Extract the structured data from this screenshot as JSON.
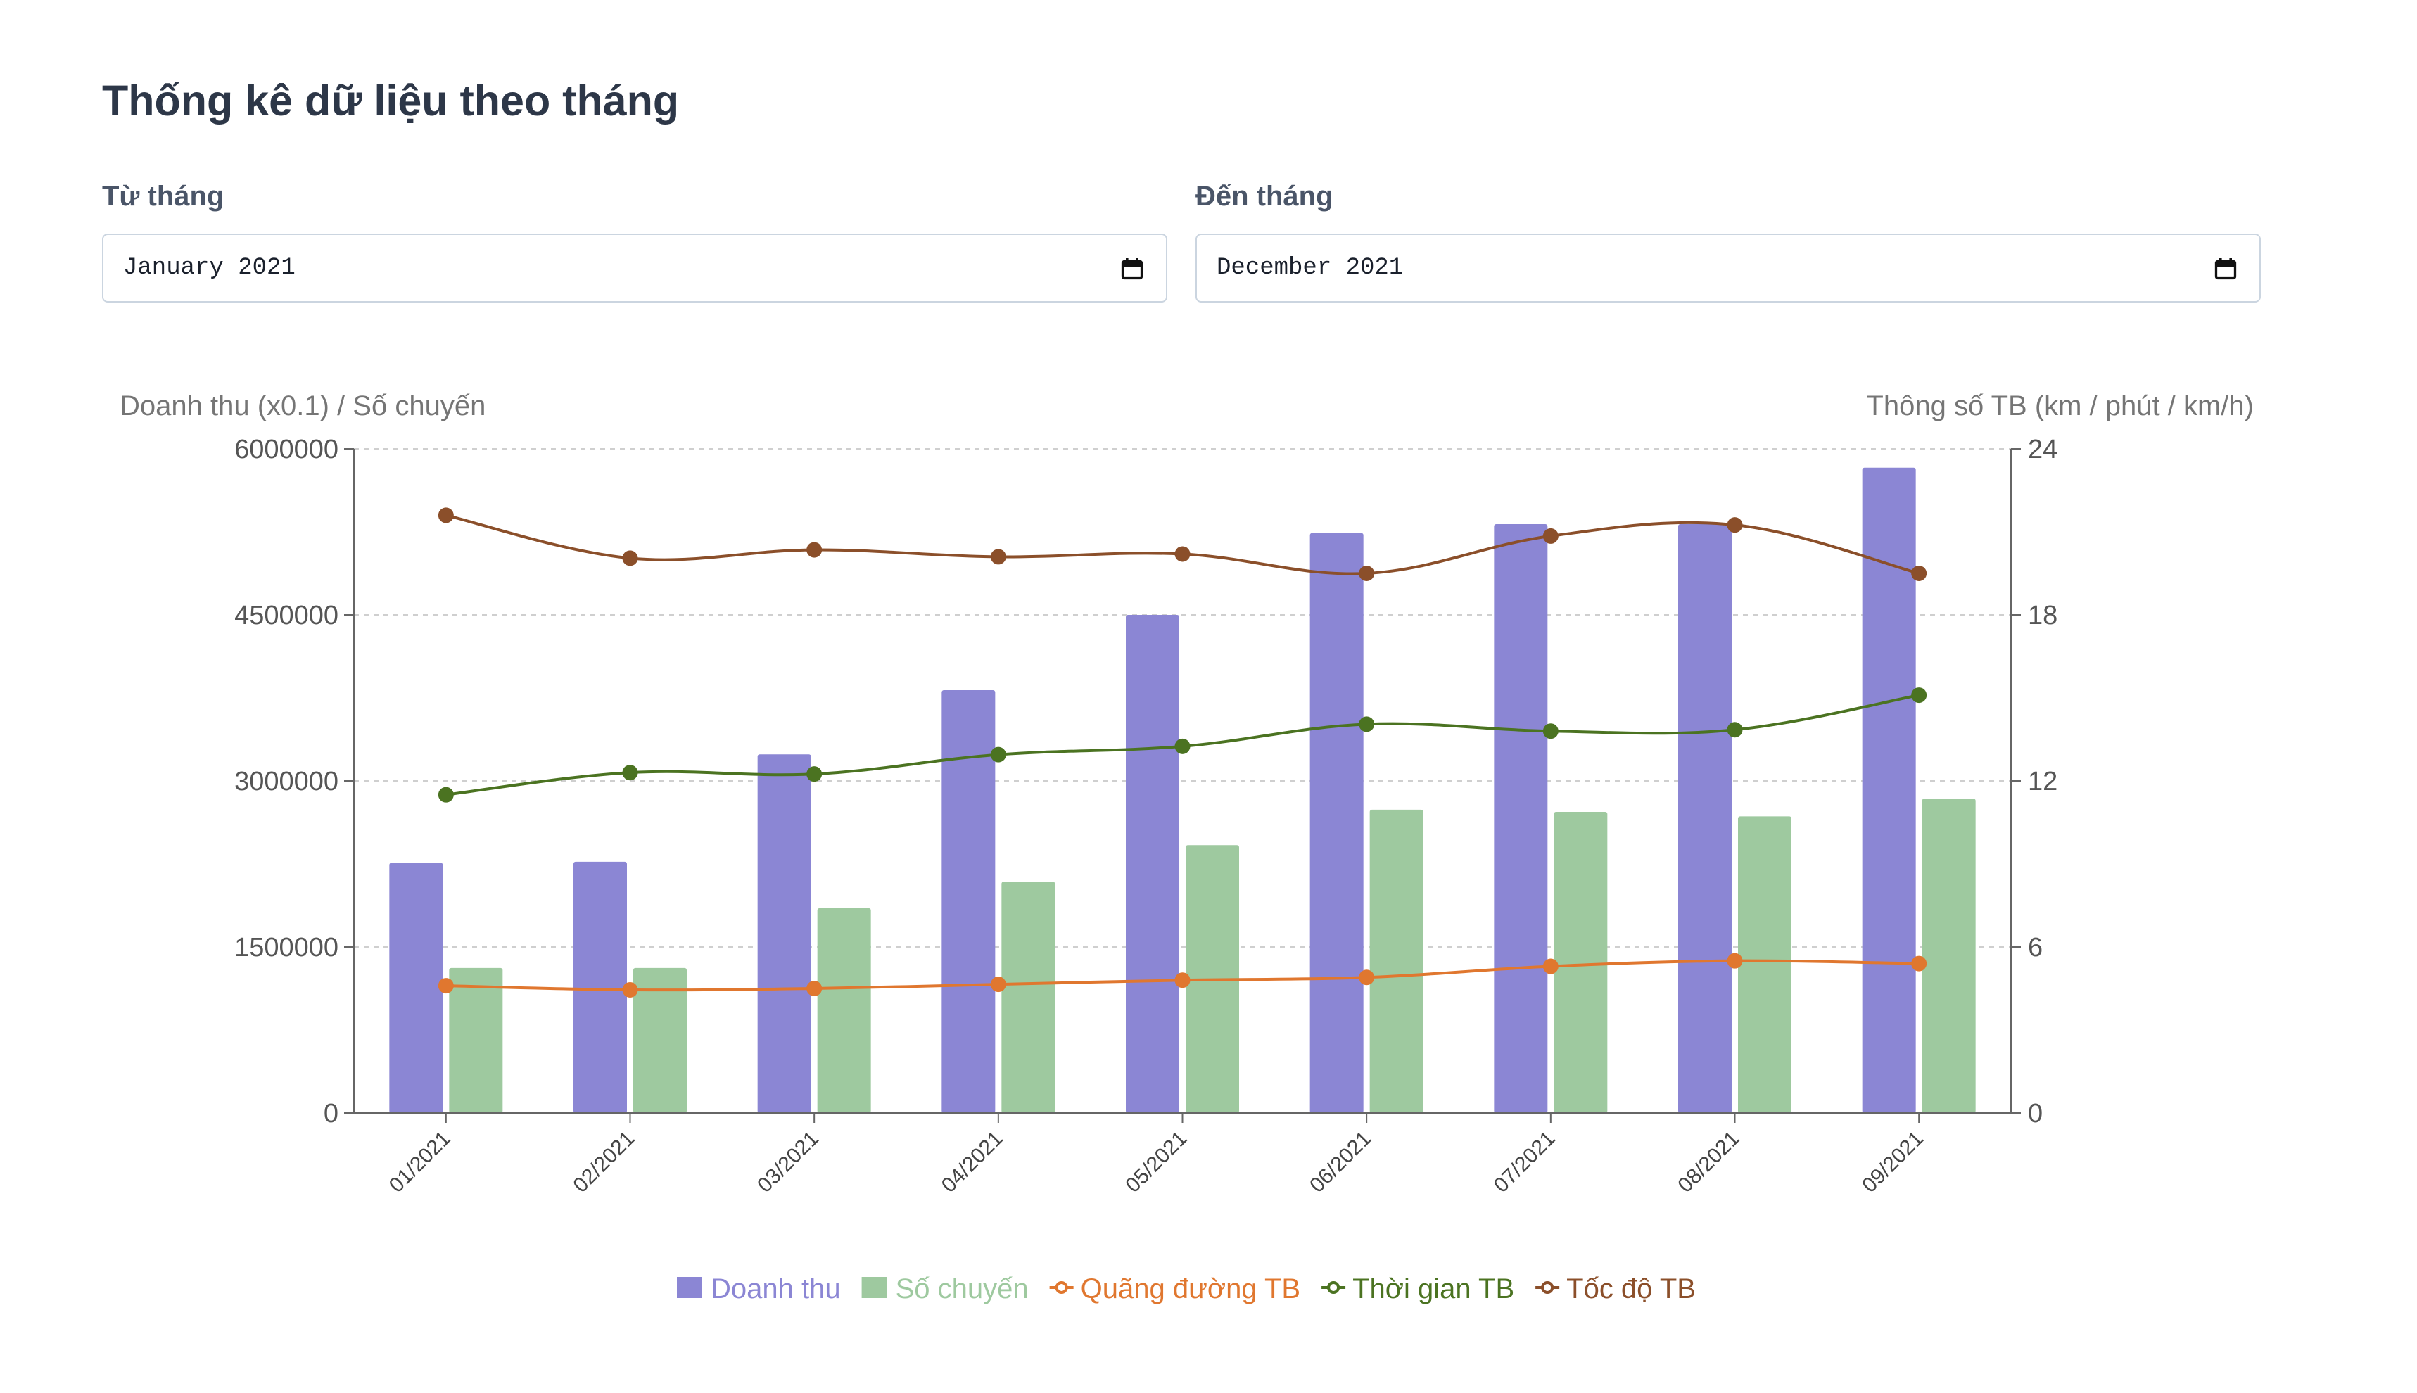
{
  "header": {
    "title": "Thống kê dữ liệu theo tháng"
  },
  "filters": {
    "from": {
      "label": "Từ tháng",
      "value": "January  2021"
    },
    "to": {
      "label": "Đến tháng",
      "value": "December  2021"
    }
  },
  "icons": {
    "date_picker": "calendar-icon"
  },
  "colors": {
    "revenue": "#8b86d4",
    "trips": "#9ec99f",
    "distance": "#e0772f",
    "time": "#4b7321",
    "speed": "#8b4f2a"
  },
  "chart_data": {
    "type": "bar",
    "categories": [
      "01/2021",
      "02/2021",
      "03/2021",
      "04/2021",
      "05/2021",
      "06/2021",
      "07/2021",
      "08/2021",
      "09/2021"
    ],
    "left_axis": {
      "label": "Doanh thu (x0.1) / Số chuyến",
      "min": 0,
      "max": 6000000,
      "ticks": [
        "0",
        "1500000",
        "3000000",
        "4500000",
        "6000000"
      ]
    },
    "right_axis": {
      "label": "Thông số TB (km / phút / km/h)",
      "min": 0,
      "max": 24,
      "ticks": [
        "0",
        "6",
        "12",
        "18",
        "24"
      ]
    },
    "grid": true,
    "legend_position": "bottom",
    "series": [
      {
        "name": "Doanh thu",
        "kind": "bar",
        "axis": "left",
        "values": [
          2260000,
          2270000,
          3240000,
          3820000,
          4500000,
          5240000,
          5320000,
          5320000,
          5830000
        ]
      },
      {
        "name": "Số chuyến",
        "kind": "bar",
        "axis": "left",
        "values": [
          1310000,
          1310000,
          1850000,
          2090000,
          2420000,
          2740000,
          2720000,
          2680000,
          2840000
        ]
      },
      {
        "name": "Quãng đường TB",
        "kind": "line",
        "axis": "right",
        "values": [
          4.6,
          4.45,
          4.5,
          4.65,
          4.8,
          4.9,
          5.3,
          5.5,
          5.4
        ]
      },
      {
        "name": "Thời gian TB",
        "kind": "line",
        "axis": "right",
        "values": [
          11.5,
          12.3,
          12.25,
          12.95,
          13.25,
          14.05,
          13.8,
          13.85,
          15.1
        ]
      },
      {
        "name": "Tốc độ TB",
        "kind": "line",
        "axis": "right",
        "values": [
          21.6,
          20.05,
          20.35,
          20.1,
          20.2,
          19.5,
          20.85,
          21.25,
          19.5
        ]
      }
    ]
  }
}
